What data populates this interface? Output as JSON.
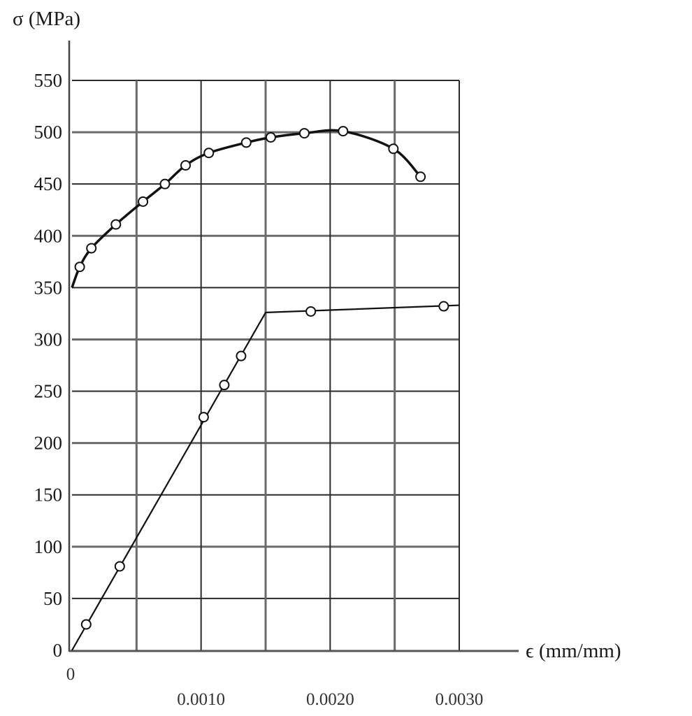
{
  "chart_data": {
    "type": "line",
    "title": "",
    "ylabel": "σ (MPa)",
    "xlabel": "ϵ (mm/mm)",
    "xlim": [
      0,
      0.003
    ],
    "ylim": [
      0,
      550
    ],
    "grid": true,
    "legend": null,
    "y_ticks": [
      0,
      50,
      100,
      150,
      200,
      250,
      300,
      350,
      400,
      450,
      500,
      550
    ],
    "y_tick_labels": [
      "0",
      "50",
      "100",
      "150",
      "200",
      "250",
      "300",
      "350",
      "400",
      "450",
      "500",
      "550"
    ],
    "x_gridlines": [
      0,
      0.0005,
      0.001,
      0.0015,
      0.002,
      0.0025,
      0.003
    ],
    "x_tick_labels": [
      {
        "value": 0,
        "label": "0"
      },
      {
        "value": 0.001,
        "label": "0.0010"
      },
      {
        "value": 0.002,
        "label": "0.0020"
      },
      {
        "value": 0.003,
        "label": "0.0030"
      }
    ],
    "series": [
      {
        "name": "upper curve (nonlinear)",
        "line": [
          [
            0,
            350
          ],
          [
            6e-05,
            370
          ],
          [
            0.00015,
            388
          ],
          [
            0.00034,
            411
          ],
          [
            0.00055,
            433
          ],
          [
            0.00072,
            450
          ],
          [
            0.00088,
            468
          ],
          [
            0.00106,
            480
          ],
          [
            0.00135,
            490
          ],
          [
            0.00154,
            495
          ],
          [
            0.0018,
            499
          ],
          [
            0.0021,
            501
          ],
          [
            0.00249,
            484
          ],
          [
            0.0027,
            457
          ]
        ],
        "markers": [
          [
            6e-05,
            370
          ],
          [
            0.00015,
            388
          ],
          [
            0.00034,
            411
          ],
          [
            0.00055,
            433
          ],
          [
            0.00072,
            450
          ],
          [
            0.00088,
            468
          ],
          [
            0.00106,
            480
          ],
          [
            0.00135,
            490
          ],
          [
            0.00154,
            495
          ],
          [
            0.0018,
            499
          ],
          [
            0.0021,
            501
          ],
          [
            0.00249,
            484
          ],
          [
            0.0027,
            457
          ]
        ]
      },
      {
        "name": "lower curve (linear-elastic then yield plateau)",
        "line": [
          [
            0,
            0
          ],
          [
            0.0015,
            326
          ],
          [
            0.003,
            333
          ]
        ],
        "markers": [
          [
            0.00011,
            25
          ],
          [
            0.00037,
            81
          ],
          [
            0.00102,
            225
          ],
          [
            0.00118,
            256
          ],
          [
            0.00131,
            284
          ],
          [
            0.00185,
            327
          ],
          [
            0.00288,
            332
          ]
        ]
      }
    ]
  },
  "axes": {
    "y_label": "σ (MPa)",
    "x_label": "ϵ (mm/mm)"
  }
}
